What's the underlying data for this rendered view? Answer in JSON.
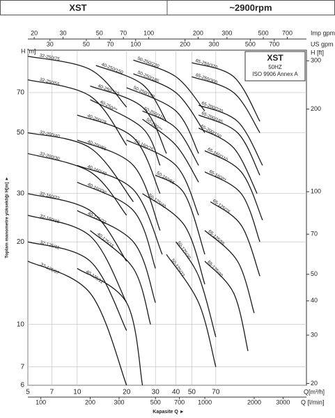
{
  "chart_data": {
    "type": "line",
    "model": "XST",
    "speed": "~2900rpm",
    "legend_box": {
      "title": "XST",
      "frequency": "50HZ",
      "standard": "ISO 9906 Annex A"
    },
    "xlabel": "Q[m³/h]",
    "ylabel": "H\n[m]",
    "y_axis_title": "Toplam manometre yüksekliği H[m] ►",
    "x_axis_title": "Kapasite Q ►",
    "log_x": true,
    "log_y": true,
    "grid": true,
    "xlim": [
      5,
      250
    ],
    "xticks": [
      5,
      7,
      10,
      20,
      30,
      40,
      50,
      70
    ],
    "ylim": [
      6,
      100
    ],
    "yticks": [
      6,
      7,
      10,
      20,
      30,
      50,
      70
    ],
    "y2label": "H [ft]",
    "y2lim": [
      19.7,
      328
    ],
    "y2ticks": [
      20,
      30,
      40,
      50,
      70,
      100,
      200,
      300
    ],
    "x_lmin_label": "Q [l/min]",
    "x_lmin_lim": [
      83.3,
      4167
    ],
    "x_lmin_ticks": [
      100,
      200,
      300,
      500,
      700,
      1000,
      2000,
      3000
    ],
    "x_imp_label": "Imp gpm",
    "x_imp_lim": [
      18.3,
      916
    ],
    "x_imp_ticks": [
      20,
      30,
      50,
      70,
      100,
      200,
      300,
      500,
      700
    ],
    "x_us_label": "US gpm",
    "x_us_lim": [
      22,
      1100
    ],
    "x_us_ticks": [
      30,
      50,
      70,
      100,
      200,
      300,
      500,
      700
    ],
    "color": "#1a1a1a",
    "series": [
      {
        "name": "32-250/75",
        "x": [
          5,
          12,
          20
        ],
        "y": [
          95,
          85,
          62
        ]
      },
      {
        "name": "32-250/55",
        "x": [
          5,
          12,
          20
        ],
        "y": [
          78,
          68,
          45
        ]
      },
      {
        "name": "32-200/40",
        "x": [
          5,
          12,
          22
        ],
        "y": [
          50,
          44,
          28
        ]
      },
      {
        "name": "32-200/30",
        "x": [
          5,
          12,
          20
        ],
        "y": [
          42,
          36,
          25
        ]
      },
      {
        "name": "32-160/22",
        "x": [
          5,
          12,
          20
        ],
        "y": [
          30,
          26,
          17
        ]
      },
      {
        "name": "32-160/15",
        "x": [
          5,
          12,
          20
        ],
        "y": [
          25,
          21,
          12
        ]
      },
      {
        "name": "32-125/11",
        "x": [
          5,
          12,
          20
        ],
        "y": [
          20,
          17,
          9.5
        ]
      },
      {
        "name": "32-125/07",
        "x": [
          5,
          12,
          20
        ],
        "y": [
          17,
          13,
          6
        ]
      },
      {
        "name": "40-250/150",
        "x": [
          13,
          25,
          35
        ],
        "y": [
          88,
          75,
          55
        ]
      },
      {
        "name": "40-250/110",
        "x": [
          12,
          25,
          35
        ],
        "y": [
          74,
          62,
          42
        ]
      },
      {
        "name": "40-250/**",
        "x": [
          12,
          25,
          32
        ],
        "y": [
          66,
          52,
          38
        ]
      },
      {
        "name": "40-200/75",
        "x": [
          10,
          22,
          32
        ],
        "y": [
          58,
          48,
          30
        ]
      },
      {
        "name": "40-200/55",
        "x": [
          10,
          22,
          32
        ],
        "y": [
          47,
          38,
          22
        ]
      },
      {
        "name": "40-160/40",
        "x": [
          10,
          22,
          33
        ],
        "y": [
          38,
          31,
          18
        ]
      },
      {
        "name": "40-160/30",
        "x": [
          10,
          22,
          30
        ],
        "y": [
          33,
          26,
          16
        ]
      },
      {
        "name": "40-125/22",
        "x": [
          10,
          22,
          30
        ],
        "y": [
          26,
          20,
          12
        ]
      },
      {
        "name": "40-125/15",
        "x": [
          12,
          22,
          28
        ],
        "y": [
          22,
          16,
          10
        ]
      },
      {
        "name": "40-125/11",
        "x": [
          10,
          20,
          25
        ],
        "y": [
          16,
          12,
          6
        ]
      },
      {
        "name": "50-250/220",
        "x": [
          22,
          40,
          60
        ],
        "y": [
          92,
          80,
          60
        ]
      },
      {
        "name": "50-250/185",
        "x": [
          22,
          40,
          60
        ],
        "y": [
          82,
          70,
          50
        ]
      },
      {
        "name": "50-250/150",
        "x": [
          20,
          40,
          55
        ],
        "y": [
          73,
          60,
          42
        ]
      },
      {
        "name": "50-250/110",
        "x": [
          25,
          40,
          55
        ],
        "y": [
          60,
          52,
          38
        ]
      },
      {
        "name": "50-200/**",
        "x": [
          25,
          40,
          55
        ],
        "y": [
          56,
          45,
          33
        ]
      },
      {
        "name": "50-160/75",
        "x": [
          20,
          40,
          55
        ],
        "y": [
          47,
          38,
          25
        ]
      },
      {
        "name": "50-160/55",
        "x": [
          30,
          45,
          60
        ],
        "y": [
          35,
          30,
          18
        ]
      },
      {
        "name": "50-125/40",
        "x": [
          25,
          45,
          60
        ],
        "y": [
          30,
          23,
          14
        ]
      },
      {
        "name": "50-125/30",
        "x": [
          40,
          55,
          70
        ],
        "y": [
          20,
          15,
          9
        ]
      },
      {
        "name": "50-125/22",
        "x": [
          35,
          55,
          70
        ],
        "y": [
          18,
          12,
          7
        ]
      },
      {
        "name": "65-250/370",
        "x": [
          50,
          90,
          130
        ],
        "y": [
          90,
          80,
          55
        ]
      },
      {
        "name": "65-250/300",
        "x": [
          50,
          90,
          130
        ],
        "y": [
          80,
          70,
          50
        ]
      },
      {
        "name": "65-200/220",
        "x": [
          55,
          95,
          135
        ],
        "y": [
          63,
          55,
          38
        ]
      },
      {
        "name": "65-200/185",
        "x": [
          55,
          95,
          130
        ],
        "y": [
          58,
          50,
          35
        ]
      },
      {
        "name": "65-200/150",
        "x": [
          55,
          90,
          125
        ],
        "y": [
          52,
          44,
          30
        ]
      },
      {
        "name": "65-160/110",
        "x": [
          60,
          100,
          135
        ],
        "y": [
          43,
          36,
          24
        ]
      },
      {
        "name": "65-160/**",
        "x": [
          60,
          100,
          130
        ],
        "y": [
          36,
          30,
          20
        ]
      },
      {
        "name": "65-125/75",
        "x": [
          65,
          100,
          130
        ],
        "y": [
          28,
          23,
          15
        ]
      },
      {
        "name": "65-125/55",
        "x": [
          60,
          95,
          120
        ],
        "y": [
          22,
          17,
          11
        ]
      },
      {
        "name": "65-125/40",
        "x": [
          60,
          90,
          110
        ],
        "y": [
          17,
          13,
          8
        ]
      }
    ]
  }
}
